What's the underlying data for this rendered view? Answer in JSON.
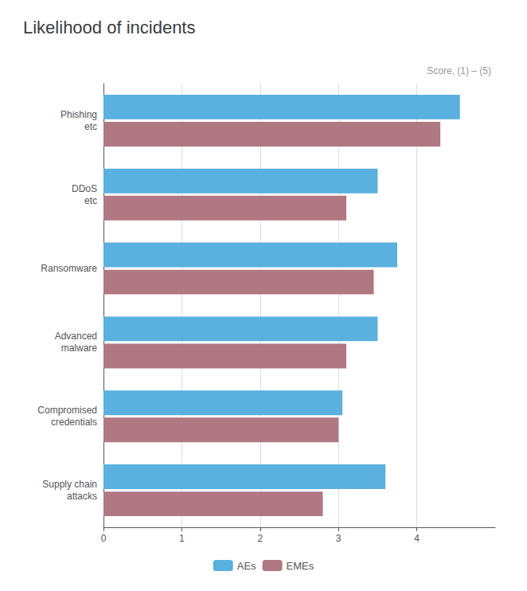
{
  "chart_data": {
    "type": "bar",
    "orientation": "horizontal",
    "title": "Likelihood of incidents",
    "subtitle": "Score, (1) – (5)",
    "categories": [
      "Phishing\netc",
      "DDoS\netc",
      "Ransomware",
      "Advanced\nmalware",
      "Compromised\ncredentials",
      "Supply chain\nattacks"
    ],
    "series": [
      {
        "name": "AEs",
        "color": "#5ab0de",
        "values": [
          4.55,
          3.5,
          3.75,
          3.5,
          3.05,
          3.6
        ]
      },
      {
        "name": "EMEs",
        "color": "#b07882",
        "values": [
          4.3,
          3.1,
          3.45,
          3.1,
          3.0,
          2.8
        ]
      }
    ],
    "xlim": [
      0,
      5
    ],
    "xticks": [
      0,
      1,
      2,
      3,
      4
    ],
    "grid": true,
    "legend": "bottom"
  }
}
